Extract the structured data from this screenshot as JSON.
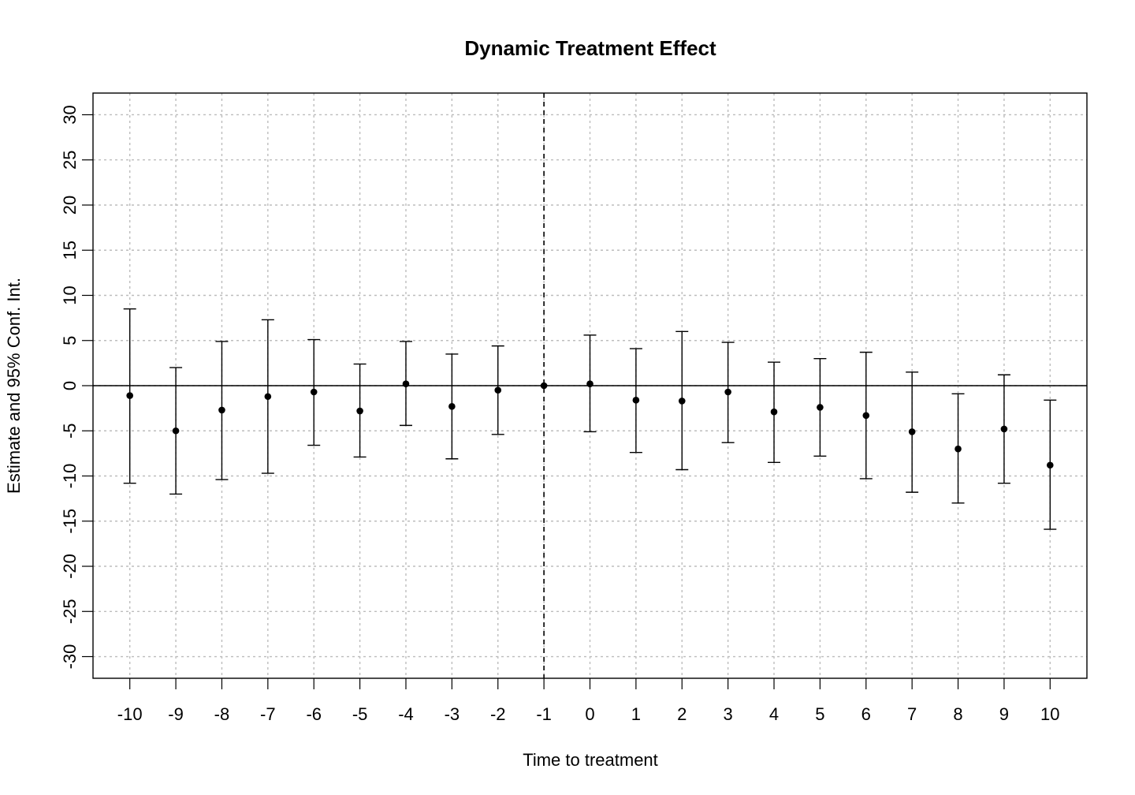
{
  "chart_data": {
    "type": "scatter",
    "title": "Dynamic Treatment Effect",
    "xlabel": "Time to treatment",
    "ylabel": "Estimate and 95% Conf. Int.",
    "x_ticks": [
      -10,
      -9,
      -8,
      -7,
      -6,
      -5,
      -4,
      -3,
      -2,
      -1,
      0,
      1,
      2,
      3,
      4,
      5,
      6,
      7,
      8,
      9,
      10
    ],
    "y_ticks": [
      -30,
      -25,
      -20,
      -15,
      -10,
      -5,
      0,
      5,
      10,
      15,
      20,
      25,
      30
    ],
    "xlim": [
      -10.8,
      10.8
    ],
    "ylim": [
      -32.4,
      32.4
    ],
    "grid": true,
    "reference_lines": {
      "horizontal": 0,
      "vertical_dashed": -1
    },
    "series": [
      {
        "x": [
          -10,
          -9,
          -8,
          -7,
          -6,
          -5,
          -4,
          -3,
          -2,
          -1,
          0,
          1,
          2,
          3,
          4,
          5,
          6,
          7,
          8,
          9,
          10
        ],
        "estimate": [
          -1.1,
          -5.0,
          -2.7,
          -1.2,
          -0.7,
          -2.8,
          0.2,
          -2.3,
          -0.5,
          0.0,
          0.2,
          -1.6,
          -1.7,
          -0.7,
          -2.9,
          -2.4,
          -3.3,
          -5.1,
          -7.0,
          -4.8,
          -8.8
        ],
        "ci_lower": [
          -10.8,
          -12.0,
          -10.4,
          -9.7,
          -6.6,
          -7.9,
          -4.4,
          -8.1,
          -5.4,
          0.0,
          -5.1,
          -7.4,
          -9.3,
          -6.3,
          -8.5,
          -7.8,
          -10.3,
          -11.8,
          -13.0,
          -10.8,
          -15.9
        ],
        "ci_upper": [
          8.5,
          2.0,
          4.9,
          7.3,
          5.1,
          2.4,
          4.9,
          3.5,
          4.4,
          0.0,
          5.6,
          4.1,
          6.0,
          4.8,
          2.6,
          3.0,
          3.7,
          1.5,
          -0.9,
          1.2,
          -1.6
        ]
      }
    ]
  }
}
